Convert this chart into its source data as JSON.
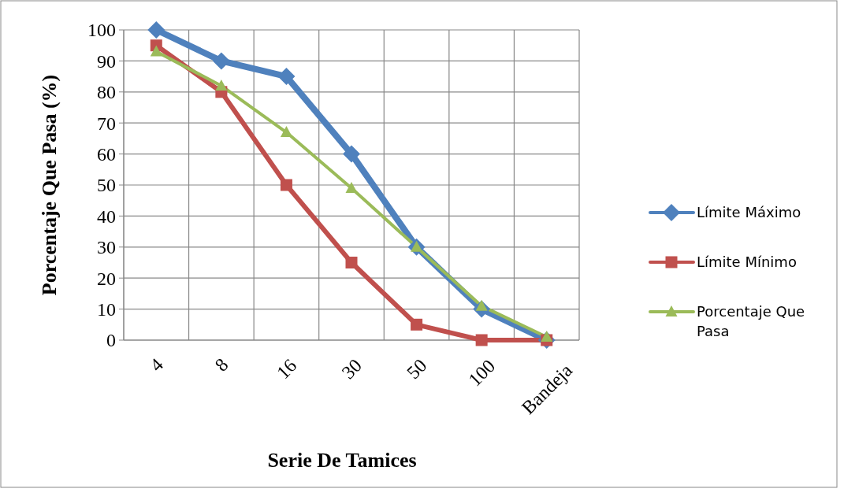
{
  "chart_data": {
    "type": "line",
    "xlabel": "Serie De Tamices",
    "ylabel": "Porcentaje Que Pasa (%)",
    "categories": [
      "4",
      "8",
      "16",
      "30",
      "50",
      "100",
      "Bandeja"
    ],
    "series": [
      {
        "name": "Límite Máximo",
        "color": "#4f81bd",
        "marker": "diamond",
        "values": [
          100,
          90,
          85,
          60,
          30,
          10,
          0
        ]
      },
      {
        "name": "Límite Mínimo",
        "color": "#c0504d",
        "marker": "square",
        "values": [
          95,
          80,
          50,
          25,
          5,
          0,
          0
        ]
      },
      {
        "name": "Porcentaje Que Pasa",
        "color": "#9bbb59",
        "marker": "triangle",
        "values": [
          93,
          82,
          67,
          49,
          30,
          11,
          1
        ]
      }
    ],
    "ylim": [
      0,
      100
    ],
    "yticks": [
      0,
      10,
      20,
      30,
      40,
      50,
      60,
      70,
      80,
      90,
      100
    ],
    "grid": true,
    "legend": "right",
    "line_style": "solid"
  }
}
